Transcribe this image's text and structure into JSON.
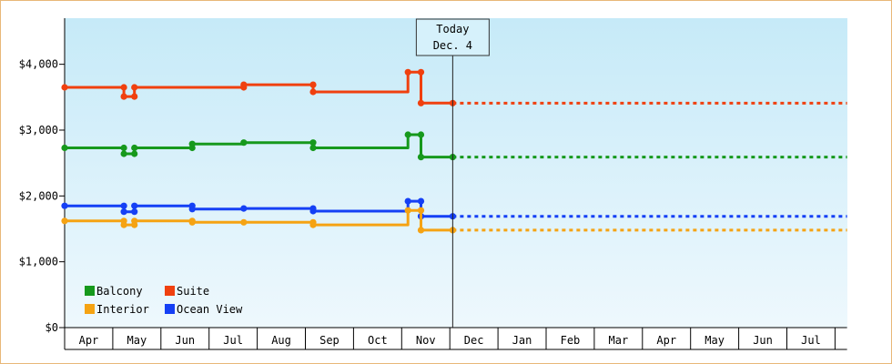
{
  "chart_data": {
    "type": "line",
    "step": true,
    "title": "",
    "xlabel": "",
    "ylabel": "",
    "ylim": [
      0,
      4700
    ],
    "y_ticks": [
      0,
      1000,
      2000,
      3000,
      4000
    ],
    "y_tick_labels": [
      "$0",
      "$1,000",
      "$2,000",
      "$3,000",
      "$4,000"
    ],
    "x_ticks": [
      "Apr",
      "May",
      "Jun",
      "Jul",
      "Aug",
      "Sep",
      "Oct",
      "Nov",
      "Dec",
      "Jan",
      "Feb",
      "Mar",
      "Apr",
      "May",
      "Jun",
      "Jul"
    ],
    "today": {
      "line1": "Today",
      "line2": "Dec. 4",
      "x": 8.06
    },
    "x_range": [
      0,
      16.25
    ],
    "projection_end": 16.25,
    "legend": [
      {
        "label": "Balcony",
        "color": "#16991c"
      },
      {
        "label": "Suite",
        "color": "#f0400f"
      },
      {
        "label": "Interior",
        "color": "#f5a313"
      },
      {
        "label": "Ocean View",
        "color": "#1540f5"
      }
    ],
    "series": [
      {
        "name": "Suite",
        "color": "#f0400f",
        "points": [
          [
            0.0,
            3650
          ],
          [
            1.23,
            3650
          ],
          [
            1.23,
            3510
          ],
          [
            1.45,
            3510
          ],
          [
            1.45,
            3650
          ],
          [
            3.72,
            3650
          ],
          [
            3.72,
            3690
          ],
          [
            5.16,
            3690
          ],
          [
            5.16,
            3580
          ],
          [
            7.13,
            3580
          ],
          [
            7.13,
            3880
          ],
          [
            7.4,
            3880
          ],
          [
            7.4,
            3410
          ],
          [
            8.06,
            3410
          ]
        ],
        "markers": [
          [
            0.0,
            3650
          ],
          [
            1.23,
            3650
          ],
          [
            1.23,
            3510
          ],
          [
            1.45,
            3510
          ],
          [
            1.45,
            3650
          ],
          [
            3.72,
            3650
          ],
          [
            3.72,
            3690
          ],
          [
            5.16,
            3690
          ],
          [
            5.16,
            3580
          ],
          [
            7.13,
            3880
          ],
          [
            7.4,
            3880
          ],
          [
            7.4,
            3410
          ],
          [
            8.06,
            3410
          ]
        ]
      },
      {
        "name": "Balcony",
        "color": "#16991c",
        "points": [
          [
            0.0,
            2730
          ],
          [
            1.23,
            2730
          ],
          [
            1.23,
            2640
          ],
          [
            1.45,
            2640
          ],
          [
            1.45,
            2730
          ],
          [
            2.65,
            2730
          ],
          [
            2.65,
            2790
          ],
          [
            3.72,
            2790
          ],
          [
            3.72,
            2810
          ],
          [
            5.16,
            2810
          ],
          [
            5.16,
            2730
          ],
          [
            7.13,
            2730
          ],
          [
            7.13,
            2930
          ],
          [
            7.4,
            2930
          ],
          [
            7.4,
            2590
          ],
          [
            8.06,
            2590
          ]
        ],
        "markers": [
          [
            0.0,
            2730
          ],
          [
            1.23,
            2730
          ],
          [
            1.23,
            2640
          ],
          [
            1.45,
            2640
          ],
          [
            1.45,
            2730
          ],
          [
            2.65,
            2730
          ],
          [
            2.65,
            2790
          ],
          [
            3.72,
            2810
          ],
          [
            5.16,
            2810
          ],
          [
            5.16,
            2730
          ],
          [
            7.13,
            2930
          ],
          [
            7.4,
            2930
          ],
          [
            7.4,
            2590
          ],
          [
            8.06,
            2590
          ]
        ]
      },
      {
        "name": "Ocean View",
        "color": "#1540f5",
        "points": [
          [
            0.0,
            1850
          ],
          [
            1.23,
            1850
          ],
          [
            1.23,
            1760
          ],
          [
            1.45,
            1760
          ],
          [
            1.45,
            1850
          ],
          [
            2.65,
            1850
          ],
          [
            2.65,
            1800
          ],
          [
            3.72,
            1800
          ],
          [
            3.72,
            1810
          ],
          [
            5.16,
            1810
          ],
          [
            5.16,
            1770
          ],
          [
            7.13,
            1770
          ],
          [
            7.13,
            1920
          ],
          [
            7.4,
            1920
          ],
          [
            7.4,
            1690
          ],
          [
            8.06,
            1690
          ]
        ],
        "markers": [
          [
            0.0,
            1850
          ],
          [
            1.23,
            1850
          ],
          [
            1.23,
            1760
          ],
          [
            1.45,
            1760
          ],
          [
            1.45,
            1850
          ],
          [
            2.65,
            1850
          ],
          [
            2.65,
            1800
          ],
          [
            3.72,
            1810
          ],
          [
            5.16,
            1810
          ],
          [
            5.16,
            1770
          ],
          [
            7.13,
            1920
          ],
          [
            7.4,
            1920
          ],
          [
            7.4,
            1690
          ],
          [
            8.06,
            1690
          ]
        ]
      },
      {
        "name": "Interior",
        "color": "#f5a313",
        "points": [
          [
            0.0,
            1620
          ],
          [
            1.23,
            1620
          ],
          [
            1.23,
            1560
          ],
          [
            1.45,
            1560
          ],
          [
            1.45,
            1620
          ],
          [
            2.65,
            1620
          ],
          [
            2.65,
            1600
          ],
          [
            3.72,
            1600
          ],
          [
            3.72,
            1600
          ],
          [
            5.16,
            1600
          ],
          [
            5.16,
            1560
          ],
          [
            7.13,
            1560
          ],
          [
            7.13,
            1780
          ],
          [
            7.4,
            1780
          ],
          [
            7.4,
            1480
          ],
          [
            8.06,
            1480
          ]
        ],
        "markers": [
          [
            0.0,
            1620
          ],
          [
            1.23,
            1620
          ],
          [
            1.23,
            1560
          ],
          [
            1.45,
            1560
          ],
          [
            1.45,
            1620
          ],
          [
            2.65,
            1620
          ],
          [
            2.65,
            1600
          ],
          [
            3.72,
            1600
          ],
          [
            5.16,
            1600
          ],
          [
            5.16,
            1560
          ],
          [
            7.13,
            1780
          ],
          [
            7.4,
            1780
          ],
          [
            7.4,
            1480
          ],
          [
            8.06,
            1480
          ]
        ]
      }
    ]
  }
}
